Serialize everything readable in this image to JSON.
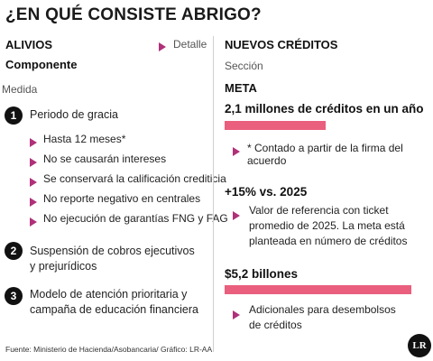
{
  "title": "¿EN QUÉ CONSISTE ABRIGO?",
  "left": {
    "header": "ALIVIOS",
    "detail_label": "Detalle",
    "componente_label": "Componente",
    "medida_label": "Medida",
    "items": [
      {
        "number": "1",
        "text": "Periodo de gracia"
      },
      {
        "number": "2",
        "text_line1": "Suspensión de cobros ejecutivos",
        "text_line2": "y prejurídicos"
      },
      {
        "number": "3",
        "text_line1": "Modelo de atención prioritaria y",
        "text_line2": "campaña de educación financiera"
      }
    ],
    "subitems": [
      "Hasta 12 meses*",
      "No se causarán intereses",
      "Se conservará la calificación crediticia",
      "No reporte negativo en centrales",
      "No ejecución de garantías FNG y FAG"
    ]
  },
  "right": {
    "header": "NUEVOS CRÉDITOS",
    "seccion_label": "Sección",
    "meta_label": "META",
    "goals": [
      {
        "value": "2,1 millones de créditos en un año",
        "note": "* Contado a partir de la firma del acuerdo"
      },
      {
        "value": "+15% vs. 2025",
        "note_line1": "Valor de referencia con ticket",
        "note_line2": "promedio de 2025. La meta está",
        "note_line3": "planteada en número de créditos"
      },
      {
        "value": "$5,2 billones",
        "note_line1": "Adicionales para desembolsos",
        "note_line2": "de créditos"
      }
    ]
  },
  "footer": "Fuente: Ministerio de Hacienda/Asobancaria/ Gráfico: LR-AA",
  "logo": "LR",
  "colors": {
    "accent_triangle": "#b0307a",
    "bar": "#ea5f7e"
  }
}
